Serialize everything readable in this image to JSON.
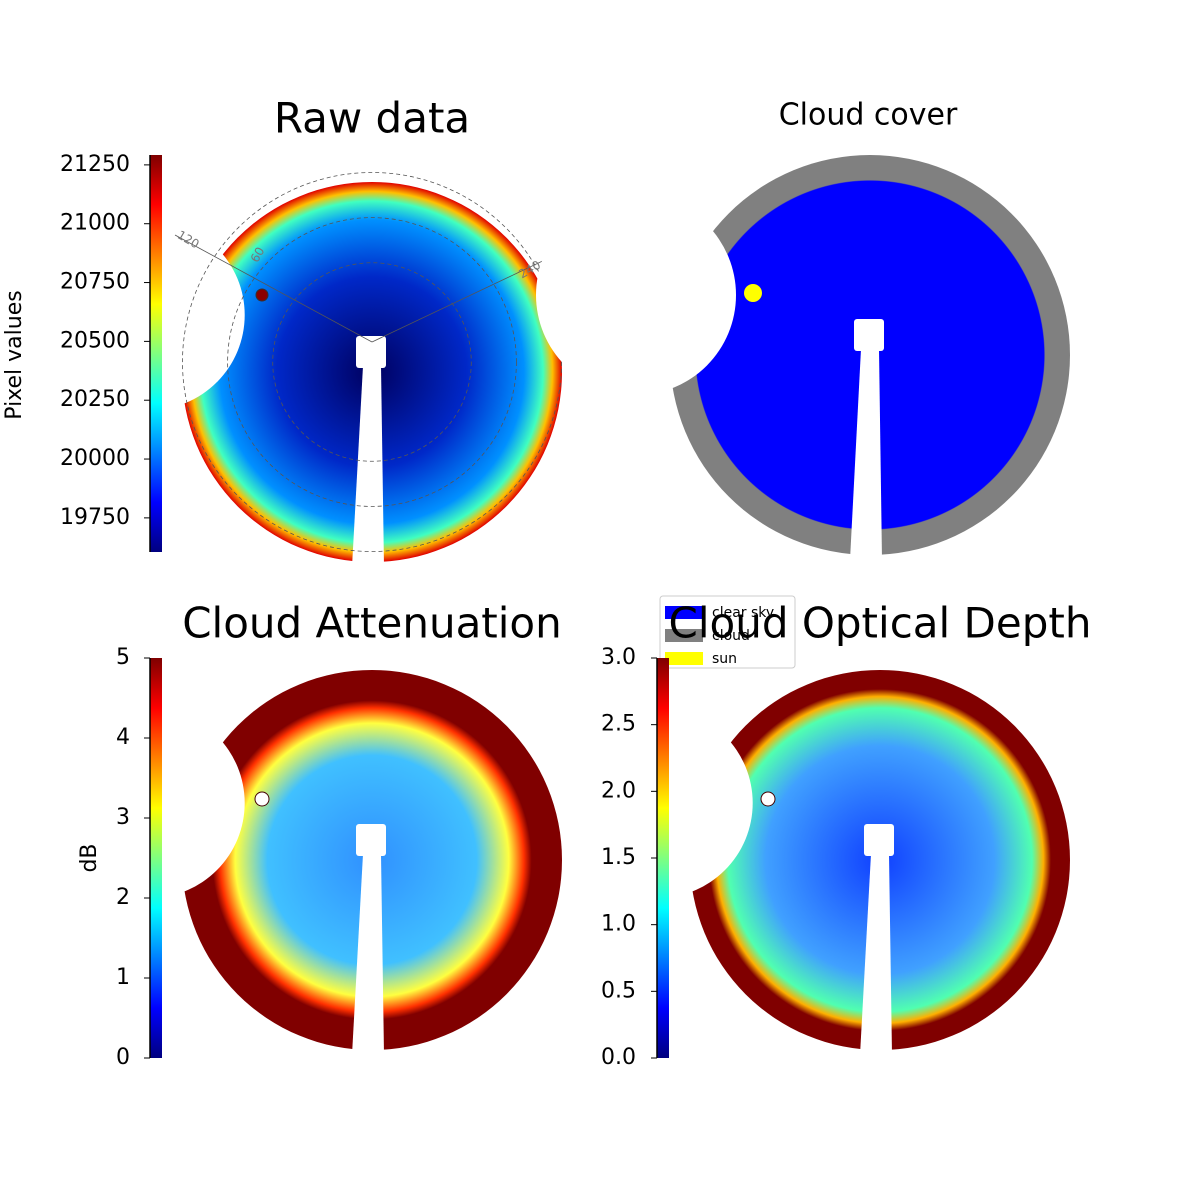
{
  "chart_data": [
    {
      "type": "image",
      "title": "Raw data",
      "colormap": "jet",
      "colorbar_label": "Pixel values",
      "ylim": [
        19605,
        21292
      ],
      "yticks": [
        19750,
        20000,
        20250,
        20500,
        20750,
        21000,
        21250
      ],
      "annotations": [
        "120",
        "60",
        "240"
      ]
    },
    {
      "type": "image",
      "title": "Cloud cover",
      "series": [
        {
          "name": "clear sky",
          "color": "#0000ff"
        },
        {
          "name": "cloud",
          "color": "#808080"
        },
        {
          "name": "sun",
          "color": "#ffff00"
        }
      ]
    },
    {
      "type": "image",
      "title": "Cloud Attenuation",
      "colormap": "jet",
      "colorbar_label": "dB",
      "ylim": [
        0,
        5
      ],
      "yticks": [
        0,
        1,
        2,
        3,
        4,
        5
      ]
    },
    {
      "type": "image",
      "title": "Cloud Optical Depth",
      "colormap": "jet",
      "ylim": [
        0,
        3
      ],
      "yticks": [
        {
          "value": 0,
          "label": "0.0"
        },
        0.5,
        {
          "value": 1,
          "label": "1.0"
        },
        1.5,
        {
          "value": 2,
          "label": "2.0"
        },
        2.5,
        {
          "value": 3,
          "label": "3.0"
        }
      ]
    }
  ]
}
